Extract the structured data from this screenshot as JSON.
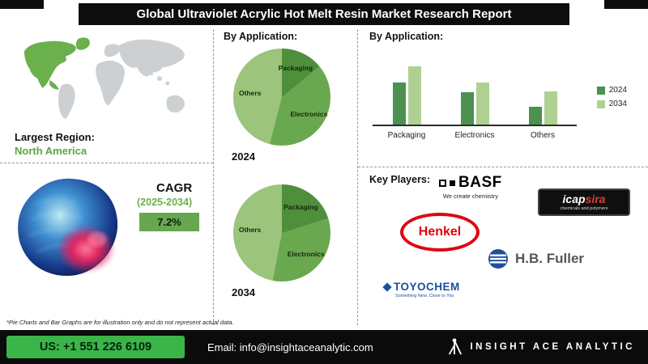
{
  "header": {
    "title": "Global Ultraviolet Acrylic Hot Melt Resin Market Research Report"
  },
  "left": {
    "largest_region_label": "Largest Region:",
    "largest_region_value": "North America",
    "cagr_label": "CAGR",
    "cagr_period": "(2025-2034)",
    "cagr_value": "7.2%"
  },
  "labels": {
    "by_application_middle": "By Application:",
    "by_application_right": "By Application:"
  },
  "chart_data": [
    {
      "type": "pie",
      "title": "2024",
      "labels": [
        "Packaging",
        "Electronics",
        "Others"
      ],
      "values": [
        14,
        40,
        46
      ],
      "colors": [
        "#4f8f3b",
        "#6aa84f",
        "#9cc47c"
      ],
      "note": "illustration only"
    },
    {
      "type": "pie",
      "title": "2034",
      "labels": [
        "Packaging",
        "Electronics",
        "Others"
      ],
      "values": [
        20,
        33,
        47
      ],
      "colors": [
        "#4f8f3b",
        "#6aa84f",
        "#9cc47c"
      ],
      "note": "illustration only"
    },
    {
      "type": "bar",
      "title": "By Application:",
      "categories": [
        "Packaging",
        "Electronics",
        "Others"
      ],
      "series": [
        {
          "name": "2024",
          "values": [
            58,
            44,
            25
          ],
          "color": "#4c9150"
        },
        {
          "name": "2034",
          "values": [
            80,
            58,
            46
          ],
          "color": "#aed191"
        }
      ],
      "ylim": [
        0,
        100
      ],
      "legend_position": "right",
      "grid": false,
      "note": "illustration only"
    }
  ],
  "key_players": {
    "title": "Key Players:",
    "basf": {
      "name": "BASF",
      "tagline": "We create chemistry"
    },
    "icapsira": {
      "name_a": "icap",
      "name_b": "sira",
      "tagline": "chemicals and polymers"
    },
    "henkel": {
      "name": "Henkel"
    },
    "fuller": {
      "name": "H.B. Fuller"
    },
    "toyochem": {
      "name": "TOYOCHEM",
      "tagline": "Something New, Close to You"
    }
  },
  "footnote": {
    "text": "*Pie Charts and Bar Graphs are for illustration only and do not represent actual data."
  },
  "footer": {
    "phone": "US: +1 551 226 6109",
    "email": "Email: info@insightaceanalytic.com",
    "brand": "INSIGHT ACE ANALYTIC"
  },
  "colors": {
    "accent_green": "#6ab04c",
    "map_region_green": "#6ab04c",
    "map_gray": "#cdd0d3",
    "header_bg": "#0d0d0d",
    "footer_bg": "#0b0b0b",
    "phone_box_green": "#3bb44a",
    "cagr_box_green": "#67a74f",
    "henkel_red": "#e1000f",
    "fuller_blue": "#1f4e9c",
    "toyochem_blue": "#17519e"
  }
}
